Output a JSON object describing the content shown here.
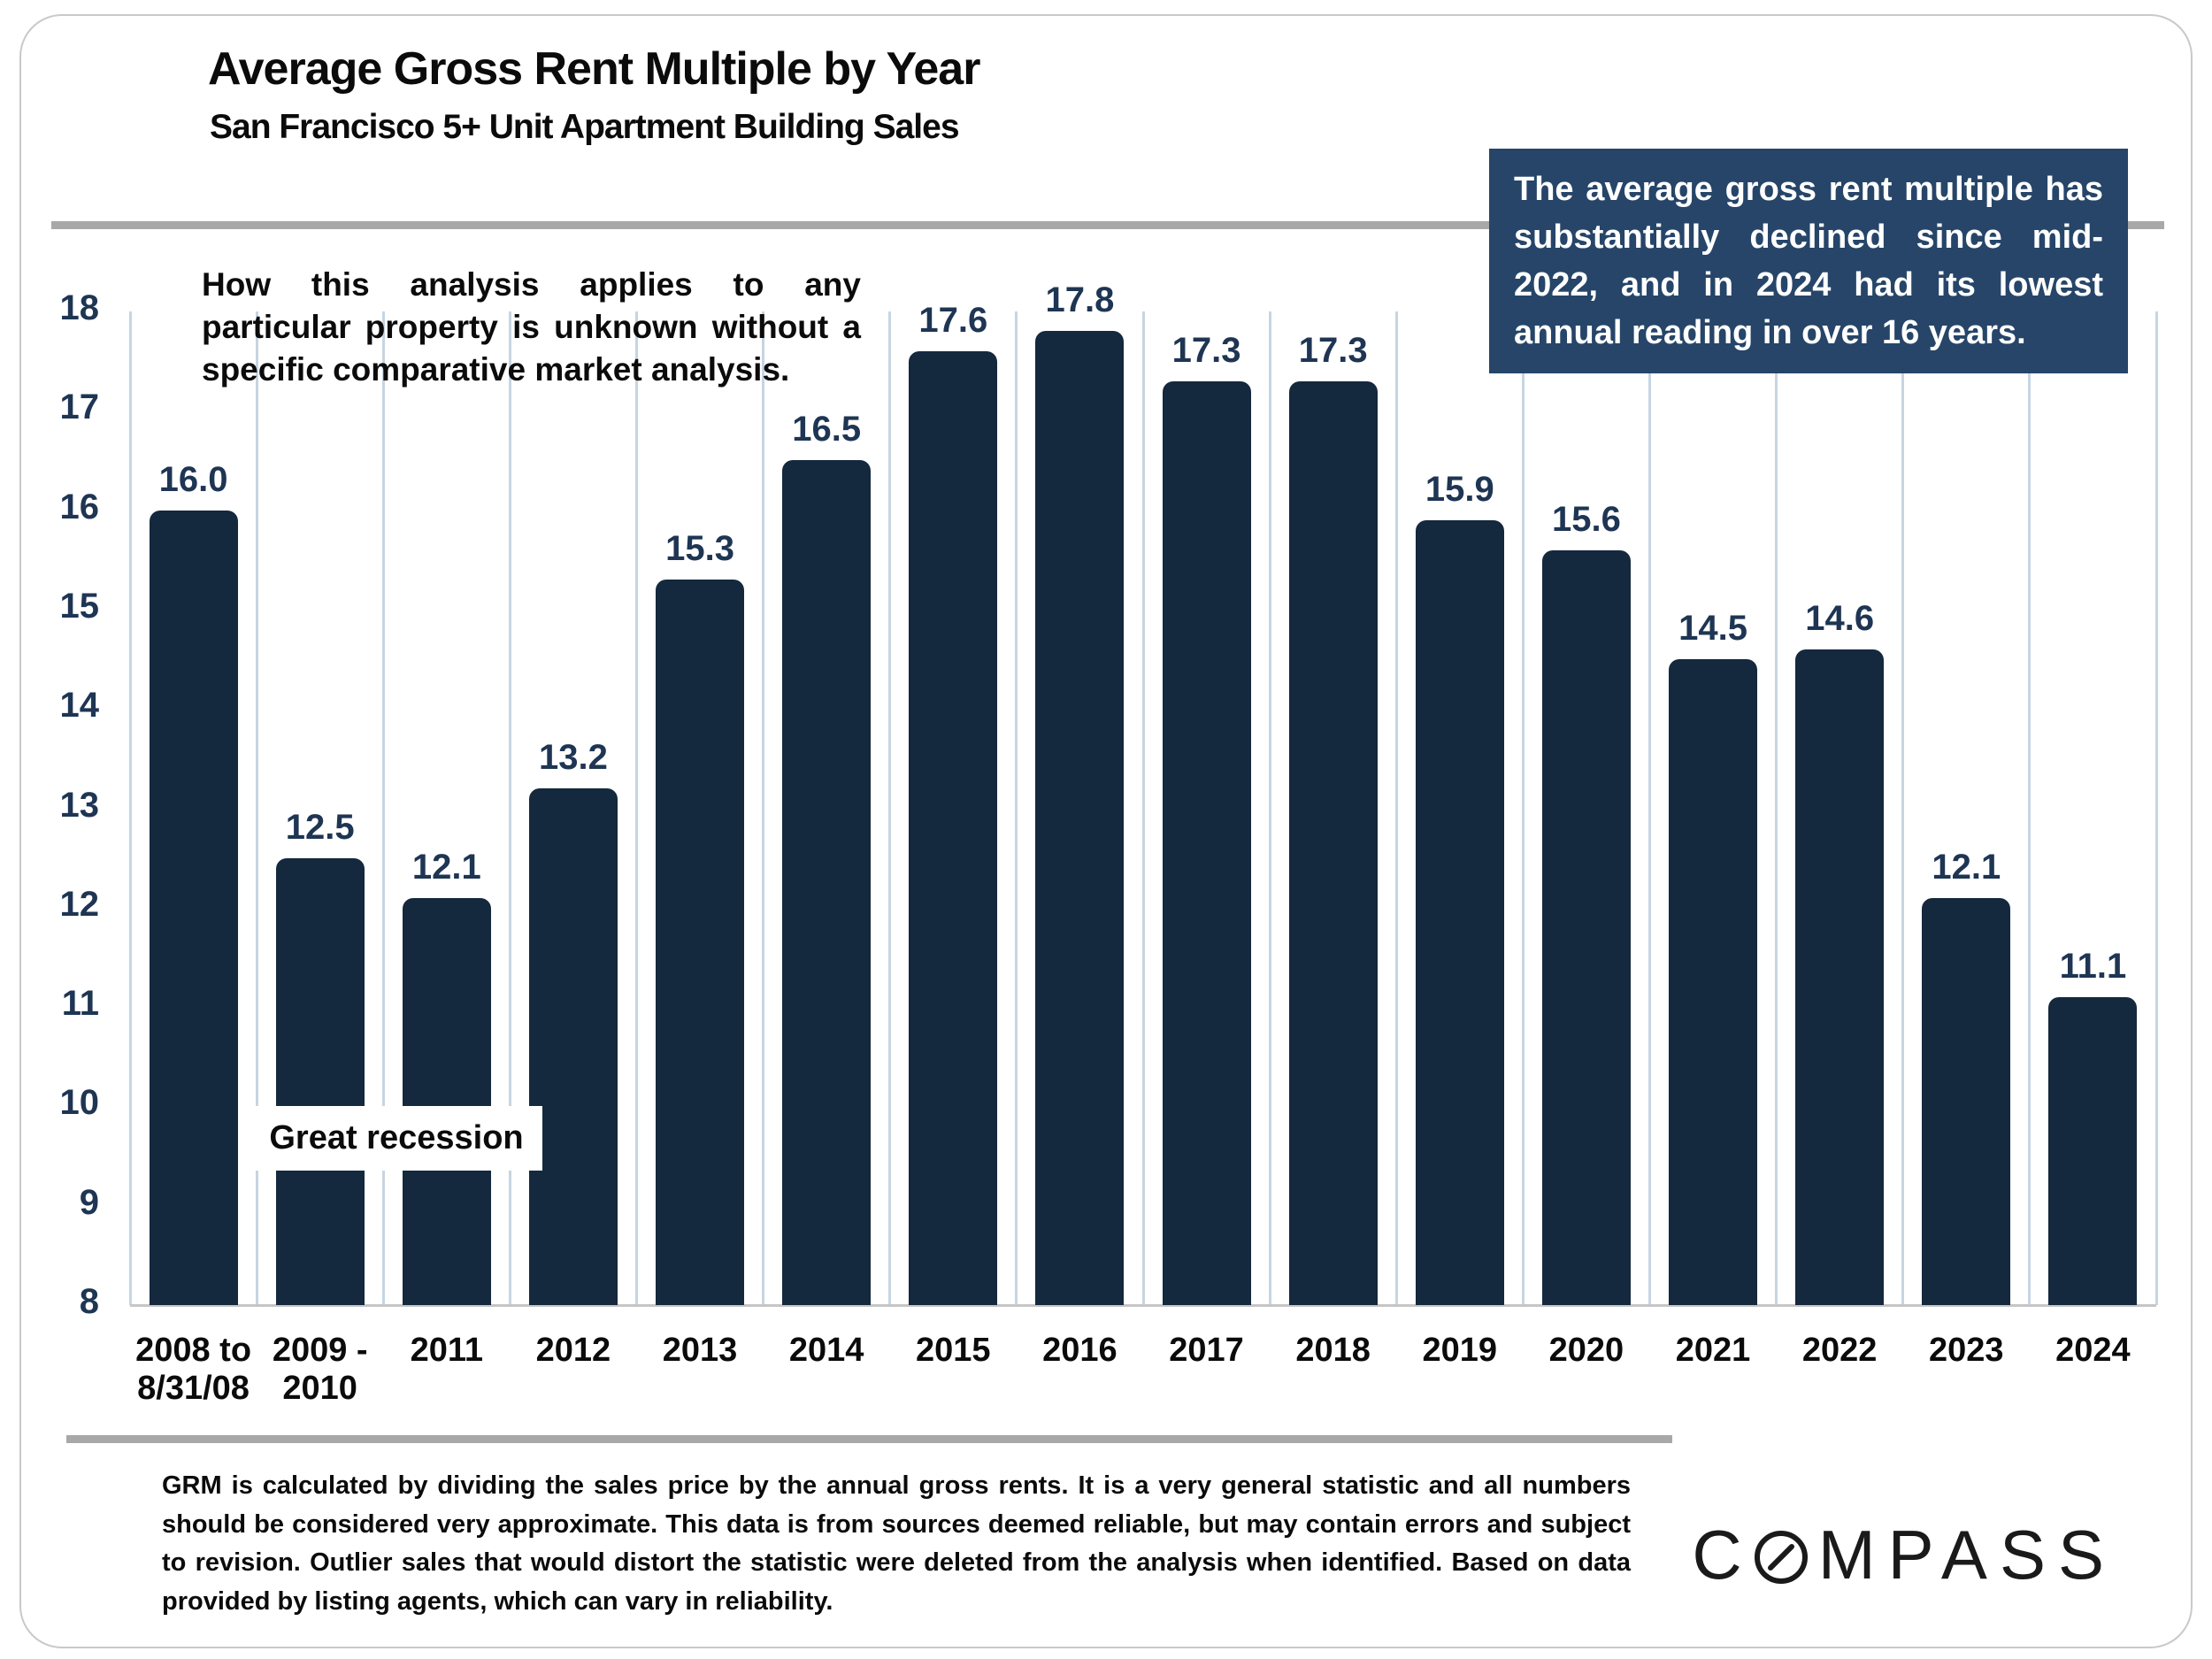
{
  "slide": {
    "title": "Average Gross Rent Multiple by Year",
    "subtitle": "San Francisco 5+ Unit Apartment Building Sales",
    "annotation": "How this analysis applies to any particular property is unknown without a specific comparative market analysis.",
    "callout": "The average gross rent multiple has substantially declined since mid-2022, and in 2024 had its lowest annual reading in over 16 years.",
    "recession_label": "Great recession",
    "footer": "GRM is calculated by dividing the sales price by the annual gross rents. It is a very general statistic and all numbers should be considered very approximate. This data is from sources deemed reliable, but may contain errors and subject to revision. Outlier sales that would distort the statistic were deleted from the analysis when identified. Based on data provided by listing agents, which can vary in reliability.",
    "brand": "COMPASS",
    "brand_prefix": "C",
    "brand_suffix": "MPASS"
  },
  "colors": {
    "bar": "#14283e",
    "callout_bg": "#264569",
    "axis_text": "#1e3553",
    "tick_text": "#0b0b0b",
    "gridline": "#c7d5e2",
    "baseline": "#c6c6c6",
    "divider": "#a8a8a8"
  },
  "chart_data": {
    "type": "bar",
    "title": "Average Gross Rent Multiple by Year",
    "subtitle": "San Francisco 5+ Unit Apartment Building Sales",
    "categories": [
      "2008 to\n8/31/08",
      "2009 -\n2010",
      "2011",
      "2012",
      "2013",
      "2014",
      "2015",
      "2016",
      "2017",
      "2018",
      "2019",
      "2020",
      "2021",
      "2022",
      "2023",
      "2024"
    ],
    "values": [
      16.0,
      12.5,
      12.1,
      13.2,
      15.3,
      16.5,
      17.6,
      17.8,
      17.3,
      17.3,
      15.9,
      15.6,
      14.5,
      14.6,
      12.1,
      11.1
    ],
    "xlabel": "",
    "ylabel": "",
    "ylim": [
      8,
      18
    ],
    "yticks": [
      8,
      9,
      10,
      11,
      12,
      13,
      14,
      15,
      16,
      17,
      18
    ],
    "grid": "vertical-category-separators",
    "legend": "none",
    "annotations": [
      "Great recession"
    ]
  }
}
